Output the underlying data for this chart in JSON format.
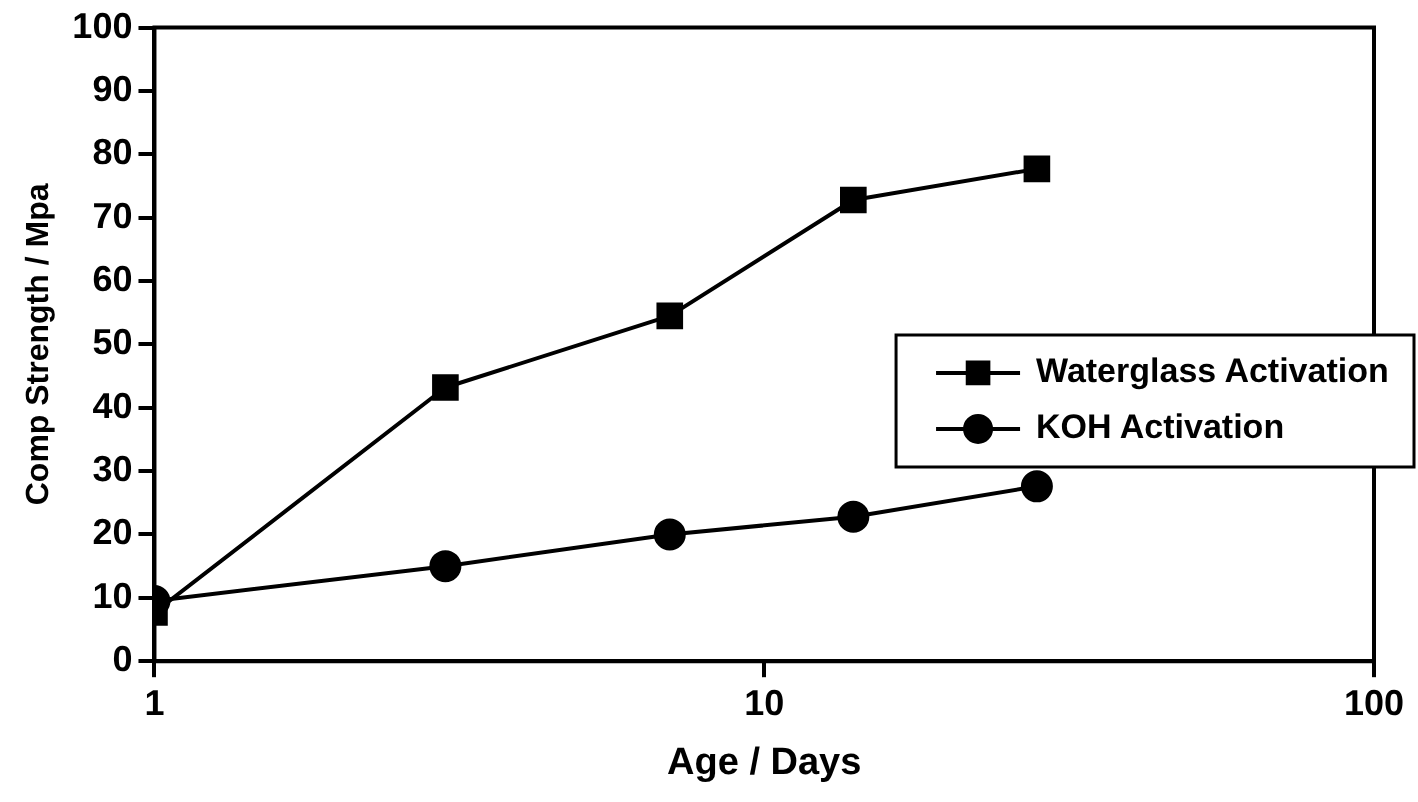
{
  "chart_data": {
    "type": "line",
    "xlabel": "Age / Days",
    "ylabel": "Comp Strength / Mpa",
    "log": "x",
    "x": [
      1,
      3,
      7,
      14,
      28
    ],
    "series": [
      {
        "name": "Waterglass Activation",
        "color": "#000000",
        "marker": "square",
        "values": [
          7.7,
          43.2,
          54.5,
          72.8,
          77.7
        ]
      },
      {
        "name": "KOH Activation",
        "color": "#000000",
        "marker": "circle",
        "values": [
          9.5,
          15,
          20,
          22.8,
          27.6
        ]
      }
    ],
    "xlim": [
      1,
      100
    ],
    "xticks": [
      1,
      10,
      100
    ],
    "ylim": [
      0,
      100
    ],
    "yticks": [
      0,
      10,
      20,
      30,
      40,
      50,
      60,
      70,
      80,
      90,
      100
    ],
    "grid": false,
    "legend": "right"
  }
}
